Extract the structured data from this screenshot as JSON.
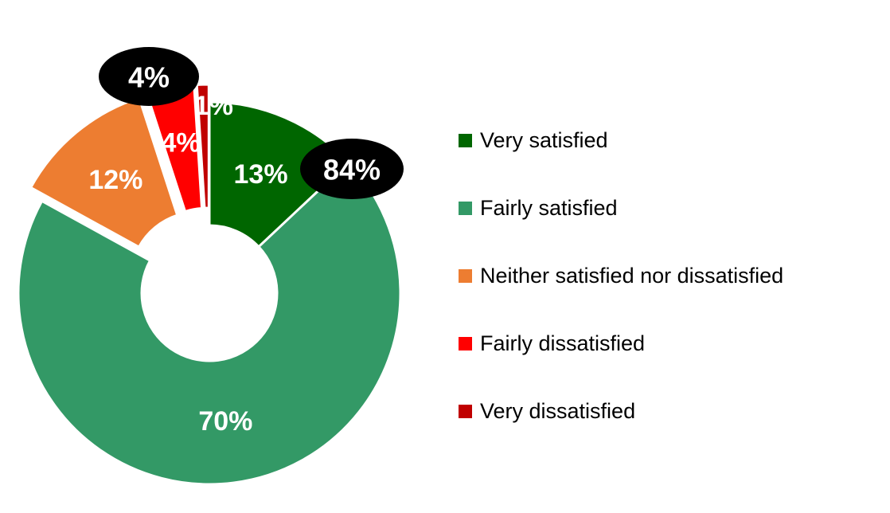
{
  "chart_data": {
    "type": "pie",
    "donut": true,
    "title": "",
    "slices": [
      {
        "name": "Very satisfied",
        "value": 13,
        "label": "13%",
        "color": "#006600",
        "exploded": false
      },
      {
        "name": "Fairly satisfied",
        "value": 70,
        "label": "70%",
        "color": "#339966",
        "exploded": false
      },
      {
        "name": "Neither satisfied nor dissatisfied",
        "value": 12,
        "label": "12%",
        "color": "#ED7D31",
        "exploded": true
      },
      {
        "name": "Fairly dissatisfied",
        "value": 4,
        "label": "4%",
        "color": "#FF0000",
        "exploded": true
      },
      {
        "name": "Very dissatisfied",
        "value": 1,
        "label": "1%",
        "color": "#C00000",
        "exploded": true
      }
    ],
    "callouts": [
      {
        "name": "total-satisfied",
        "text": "84%",
        "value": 84
      },
      {
        "name": "total-dissatisfied",
        "text": "4%",
        "value": 4
      }
    ],
    "legend_position": "right"
  }
}
